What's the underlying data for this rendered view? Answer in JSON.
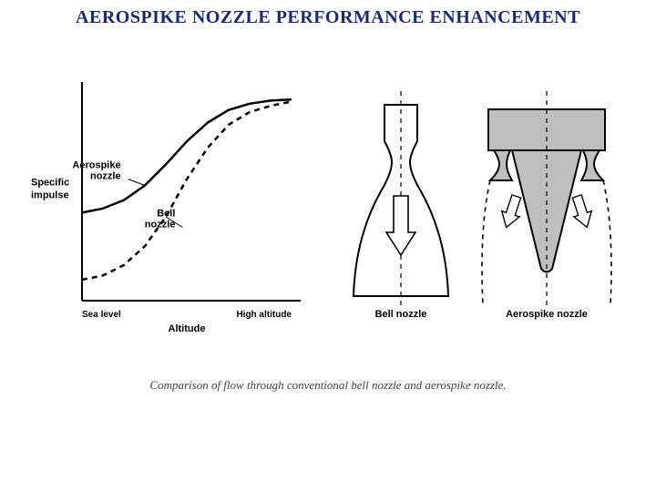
{
  "title": "AEROSPIKE NOZZLE PERFORMANCE ENHANCEMENT",
  "title_fontsize": 20,
  "caption": "Comparison of flow through conventional bell nozzle and aerospike nozzle.",
  "caption_fontsize": 13,
  "chart": {
    "type": "line",
    "x_label": "Altitude",
    "y_label": "Specific impulse",
    "x_label_fontsize": 11,
    "y_label_fontsize": 11,
    "x_tick_labels": [
      "Sea level",
      "High altitude"
    ],
    "x_tick_fontsize": 10,
    "xrange": [
      0,
      100
    ],
    "yrange": [
      0,
      100
    ],
    "axis_color": "#000000",
    "axis_width": 2,
    "series": [
      {
        "name": "Aerospike nozzle",
        "label": "Aerospike nozzle",
        "color": "#000000",
        "line_width": 2.5,
        "dash": "none",
        "points": [
          [
            0,
            42
          ],
          [
            10,
            44
          ],
          [
            20,
            48
          ],
          [
            30,
            55
          ],
          [
            40,
            65
          ],
          [
            50,
            76
          ],
          [
            60,
            85
          ],
          [
            70,
            91
          ],
          [
            80,
            94
          ],
          [
            90,
            95.5
          ],
          [
            100,
            96
          ]
        ],
        "label_pos": [
          22,
          58
        ]
      },
      {
        "name": "Bell nozzle",
        "label": "Bell nozzle",
        "color": "#000000",
        "line_width": 2.5,
        "dash": "6,5",
        "points": [
          [
            0,
            10
          ],
          [
            10,
            12
          ],
          [
            20,
            17
          ],
          [
            30,
            26
          ],
          [
            40,
            40
          ],
          [
            50,
            58
          ],
          [
            60,
            73
          ],
          [
            70,
            84
          ],
          [
            80,
            90
          ],
          [
            90,
            93
          ],
          [
            100,
            95
          ]
        ],
        "label_pos": [
          48,
          35
        ]
      }
    ],
    "label_fontsize": 11,
    "label_leader_color": "#000000",
    "label_leader_width": 1
  },
  "diagrams": {
    "bell": {
      "label": "Bell nozzle",
      "label_fontsize": 11,
      "stroke": "#000000",
      "stroke_width": 2,
      "centerline_dash": "5,5",
      "centerline_color": "#000000",
      "centerline_width": 1.2,
      "fill": "#ffffff"
    },
    "aerospike": {
      "label": "Aerospike nozzle",
      "label_fontsize": 11,
      "stroke": "#000000",
      "stroke_width": 2,
      "centerline_dash": "5,5",
      "centerline_color": "#000000",
      "centerline_width": 1.2,
      "plume_dash": "5,5",
      "plume_color": "#000000",
      "plume_width": 1.6,
      "spike_fill": "#bfbfbf",
      "arrow_fill": "#ffffff"
    }
  }
}
